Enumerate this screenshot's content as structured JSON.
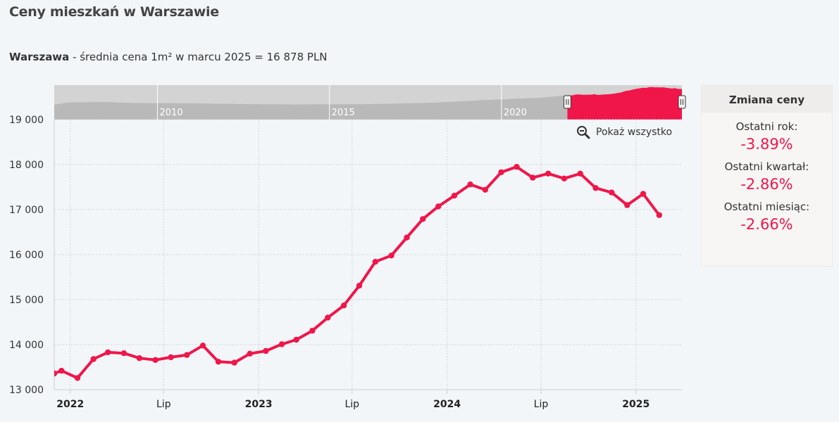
{
  "page": {
    "title": "Ceny mieszkań w Warszawie",
    "subtitle_city": "Warszawa",
    "subtitle_rest": " - średnia cena 1m² w marcu 2025 = 16 878 PLN"
  },
  "zoom": {
    "label": "Pokaż wszystko",
    "icon": "zoom-out-icon"
  },
  "panel": {
    "title": "Zmiana ceny",
    "stats": [
      {
        "label": "Ostatni rok:",
        "value": "-3.89%"
      },
      {
        "label": "Ostatni kwartał:",
        "value": "-2.86%"
      },
      {
        "label": "Ostatni miesiąc:",
        "value": "-2.66%"
      }
    ]
  },
  "colors": {
    "series": "#f0164a",
    "grid": "#cfd4da",
    "navigator_bg": "#d3d3d3",
    "navigator_area": "#b9b9b9",
    "stat_value": "#f0164a"
  },
  "chart_data": {
    "type": "line",
    "title": "Ceny mieszkań w Warszawie",
    "unit": "PLN / m²",
    "ylim": [
      13000,
      19000
    ],
    "yticks": [
      13000,
      14000,
      15000,
      16000,
      17000,
      18000,
      19000
    ],
    "ytick_labels": [
      "13 000",
      "14 000",
      "15 000",
      "16 000",
      "17 000",
      "18 000",
      "19 000"
    ],
    "xlim": [
      "2021-12-01",
      "2025-03-31"
    ],
    "xticks": [
      {
        "date": "2022-01-01",
        "label": "2022",
        "bold": true
      },
      {
        "date": "2022-07-01",
        "label": "Lip",
        "bold": false
      },
      {
        "date": "2023-01-01",
        "label": "2023",
        "bold": true
      },
      {
        "date": "2023-07-01",
        "label": "Lip",
        "bold": false
      },
      {
        "date": "2024-01-01",
        "label": "2024",
        "bold": true
      },
      {
        "date": "2024-07-01",
        "label": "Lip",
        "bold": false
      },
      {
        "date": "2025-01-01",
        "label": "2025",
        "bold": true
      }
    ],
    "grid": true,
    "series": [
      {
        "points": [
          [
            "2021-12-01",
            13360
          ],
          [
            "2021-12-15",
            13420
          ],
          [
            "2022-01-15",
            13260
          ],
          [
            "2022-02-15",
            13680
          ],
          [
            "2022-03-15",
            13830
          ],
          [
            "2022-04-15",
            13810
          ],
          [
            "2022-05-15",
            13700
          ],
          [
            "2022-06-15",
            13660
          ],
          [
            "2022-07-15",
            13720
          ],
          [
            "2022-08-15",
            13770
          ],
          [
            "2022-09-15",
            13980
          ],
          [
            "2022-10-15",
            13620
          ],
          [
            "2022-11-15",
            13600
          ],
          [
            "2022-12-15",
            13800
          ],
          [
            "2023-01-15",
            13860
          ],
          [
            "2023-02-15",
            14010
          ],
          [
            "2023-03-15",
            14110
          ],
          [
            "2023-04-15",
            14310
          ],
          [
            "2023-05-15",
            14600
          ],
          [
            "2023-06-15",
            14870
          ],
          [
            "2023-07-15",
            15310
          ],
          [
            "2023-08-15",
            15840
          ],
          [
            "2023-09-15",
            15980
          ],
          [
            "2023-10-15",
            16380
          ],
          [
            "2023-11-15",
            16790
          ],
          [
            "2023-12-15",
            17070
          ],
          [
            "2024-01-15",
            17310
          ],
          [
            "2024-02-15",
            17560
          ],
          [
            "2024-03-15",
            17440
          ],
          [
            "2024-04-15",
            17830
          ],
          [
            "2024-05-15",
            17950
          ],
          [
            "2024-06-15",
            17710
          ],
          [
            "2024-07-15",
            17800
          ],
          [
            "2024-08-15",
            17690
          ],
          [
            "2024-09-15",
            17800
          ],
          [
            "2024-10-15",
            17480
          ],
          [
            "2024-11-15",
            17380
          ],
          [
            "2024-12-15",
            17100
          ],
          [
            "2025-01-15",
            17350
          ],
          [
            "2025-02-15",
            16878
          ]
        ]
      }
    ],
    "navigator": {
      "labels": [
        "2010",
        "2015",
        "2020"
      ],
      "label_dates": [
        "2010-01-01",
        "2015-01-01",
        "2020-01-01"
      ],
      "range": [
        "2007-01-01",
        "2025-03-31"
      ],
      "selection": [
        "2021-12-01",
        "2025-03-31"
      ],
      "history": [
        [
          "2007-01-01",
          8200
        ],
        [
          "2007-06-01",
          9400
        ],
        [
          "2008-01-01",
          9600
        ],
        [
          "2008-06-01",
          9700
        ],
        [
          "2009-01-01",
          9300
        ],
        [
          "2009-06-01",
          9100
        ],
        [
          "2010-01-01",
          9050
        ],
        [
          "2010-06-01",
          9000
        ],
        [
          "2011-01-01",
          8950
        ],
        [
          "2011-06-01",
          8850
        ],
        [
          "2012-01-01",
          8700
        ],
        [
          "2012-06-01",
          8550
        ],
        [
          "2013-01-01",
          8450
        ],
        [
          "2013-06-01",
          8400
        ],
        [
          "2014-01-01",
          8350
        ],
        [
          "2014-06-01",
          8380
        ],
        [
          "2015-01-01",
          8400
        ],
        [
          "2015-06-01",
          8450
        ],
        [
          "2016-01-01",
          8500
        ],
        [
          "2016-06-01",
          8600
        ],
        [
          "2017-01-01",
          8800
        ],
        [
          "2017-06-01",
          9000
        ],
        [
          "2018-01-01",
          9300
        ],
        [
          "2018-06-01",
          9700
        ],
        [
          "2019-01-01",
          10200
        ],
        [
          "2019-06-01",
          10700
        ],
        [
          "2020-01-01",
          11100
        ],
        [
          "2020-06-01",
          11500
        ],
        [
          "2021-01-01",
          11900
        ],
        [
          "2021-06-01",
          12500
        ],
        [
          "2021-12-01",
          13360
        ]
      ],
      "ylim": [
        0,
        19000
      ]
    }
  }
}
